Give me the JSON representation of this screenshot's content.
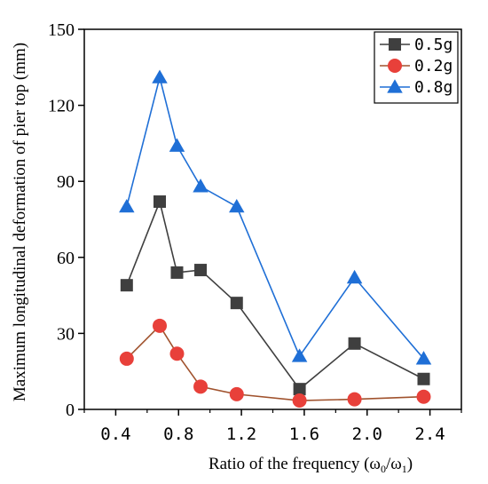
{
  "chart_data": {
    "type": "line",
    "xlabel_prefix": "Ratio of the frequency (",
    "xlabel_sym_a": "ω",
    "xlabel_sub_a": "0",
    "xlabel_slash": "/",
    "xlabel_sym_b": "ω",
    "xlabel_sub_b": "1",
    "xlabel_suffix": ")",
    "ylabel": "Maximum longitudinal deformation of pier top (mm)",
    "xlim": [
      0.2,
      2.6
    ],
    "ylim": [
      0,
      150
    ],
    "xticks": [
      0.4,
      0.8,
      1.2,
      1.6,
      2.0,
      2.4
    ],
    "xtick_labels": [
      "0.4",
      "0.8",
      "1.2",
      "1.6",
      "2.0",
      "2.4"
    ],
    "yticks": [
      0,
      30,
      60,
      90,
      120,
      150
    ],
    "ytick_labels": [
      "0",
      "30",
      "60",
      "90",
      "120",
      "150"
    ],
    "legend_position": "top-right",
    "series": [
      {
        "name": "0.5g",
        "legend_label": "0.5g",
        "color": "#3f3f3f",
        "marker": "square",
        "x": [
          0.47,
          0.68,
          0.79,
          0.94,
          1.17,
          1.57,
          1.92,
          2.36
        ],
        "y": [
          49,
          82,
          54,
          55,
          42,
          8,
          26,
          12
        ]
      },
      {
        "name": "0.2g",
        "legend_label": "0.2g",
        "color": "#e8403a",
        "line_color": "#a0522d",
        "marker": "circle",
        "x": [
          0.47,
          0.68,
          0.79,
          0.94,
          1.17,
          1.57,
          1.92,
          2.36
        ],
        "y": [
          20,
          33,
          22,
          9,
          6,
          3.5,
          4,
          5
        ]
      },
      {
        "name": "0.8g",
        "legend_label": "0.8g",
        "color": "#1f6fd6",
        "marker": "triangle",
        "x": [
          0.47,
          0.68,
          0.79,
          0.94,
          1.17,
          1.57,
          1.92,
          2.36
        ],
        "y": [
          80,
          131,
          104,
          88,
          80,
          21,
          52,
          20
        ]
      }
    ]
  }
}
